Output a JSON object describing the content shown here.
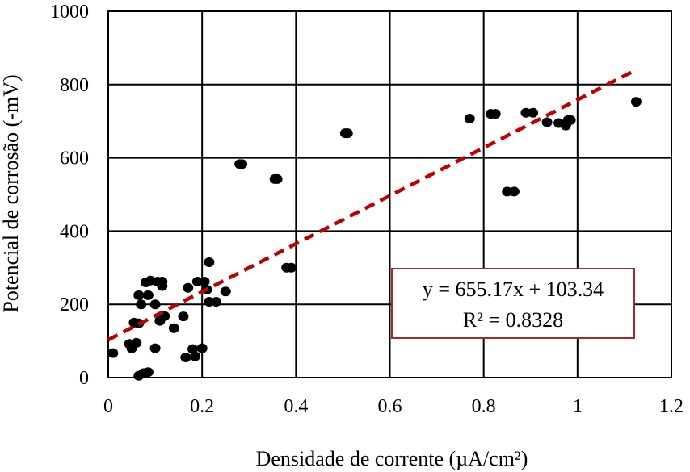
{
  "chart_data": {
    "type": "scatter",
    "xlabel": "Densidade de corrente (µA/cm²)",
    "ylabel": "Potencial de corrosão (-mV)",
    "xlim": [
      0,
      1.2
    ],
    "ylim": [
      0,
      1000
    ],
    "x_ticks": [
      "0",
      "0.2",
      "0.4",
      "0.6",
      "0.8",
      "1",
      "1.2"
    ],
    "y_ticks": [
      "0",
      "200",
      "400",
      "600",
      "800",
      "1000"
    ],
    "x_tick_values": [
      0,
      0.2,
      0.4,
      0.6,
      0.8,
      1.0,
      1.2
    ],
    "y_tick_values": [
      0,
      200,
      400,
      600,
      800,
      1000
    ],
    "grid": true,
    "marker_color": "#000000",
    "trendline": {
      "type": "linear",
      "slope": 655.17,
      "intercept": 103.34,
      "x_range": [
        0,
        1.125
      ],
      "color": "#C00000",
      "style": "dashed"
    },
    "annotation": {
      "equation": "y = 655.17x + 103.34",
      "r_squared": "R² = 0.8328",
      "border_color": "#A52A2A"
    },
    "points": [
      [
        0.01,
        67
      ],
      [
        0.045,
        92
      ],
      [
        0.05,
        80
      ],
      [
        0.06,
        95
      ],
      [
        0.055,
        150
      ],
      [
        0.065,
        148
      ],
      [
        0.07,
        200
      ],
      [
        0.065,
        225
      ],
      [
        0.08,
        260
      ],
      [
        0.085,
        225
      ],
      [
        0.09,
        265
      ],
      [
        0.1,
        200
      ],
      [
        0.1,
        80
      ],
      [
        0.105,
        262
      ],
      [
        0.11,
        155
      ],
      [
        0.115,
        262
      ],
      [
        0.115,
        250
      ],
      [
        0.12,
        168
      ],
      [
        0.14,
        135
      ],
      [
        0.16,
        167
      ],
      [
        0.165,
        55
      ],
      [
        0.17,
        245
      ],
      [
        0.18,
        78
      ],
      [
        0.185,
        58
      ],
      [
        0.19,
        262
      ],
      [
        0.2,
        80
      ],
      [
        0.205,
        262
      ],
      [
        0.21,
        240
      ],
      [
        0.215,
        315
      ],
      [
        0.215,
        207
      ],
      [
        0.23,
        207
      ],
      [
        0.25,
        235
      ],
      [
        0.065,
        5
      ],
      [
        0.075,
        12
      ],
      [
        0.085,
        15
      ],
      [
        0.28,
        583
      ],
      [
        0.285,
        583
      ],
      [
        0.355,
        542
      ],
      [
        0.36,
        542
      ],
      [
        0.38,
        300
      ],
      [
        0.39,
        300
      ],
      [
        0.505,
        667
      ],
      [
        0.51,
        667
      ],
      [
        0.77,
        707
      ],
      [
        0.815,
        720
      ],
      [
        0.825,
        720
      ],
      [
        0.85,
        508
      ],
      [
        0.865,
        508
      ],
      [
        0.89,
        723
      ],
      [
        0.905,
        723
      ],
      [
        0.935,
        697
      ],
      [
        0.96,
        695
      ],
      [
        0.975,
        688
      ],
      [
        0.98,
        703
      ],
      [
        0.985,
        703
      ],
      [
        1.125,
        753
      ]
    ]
  }
}
